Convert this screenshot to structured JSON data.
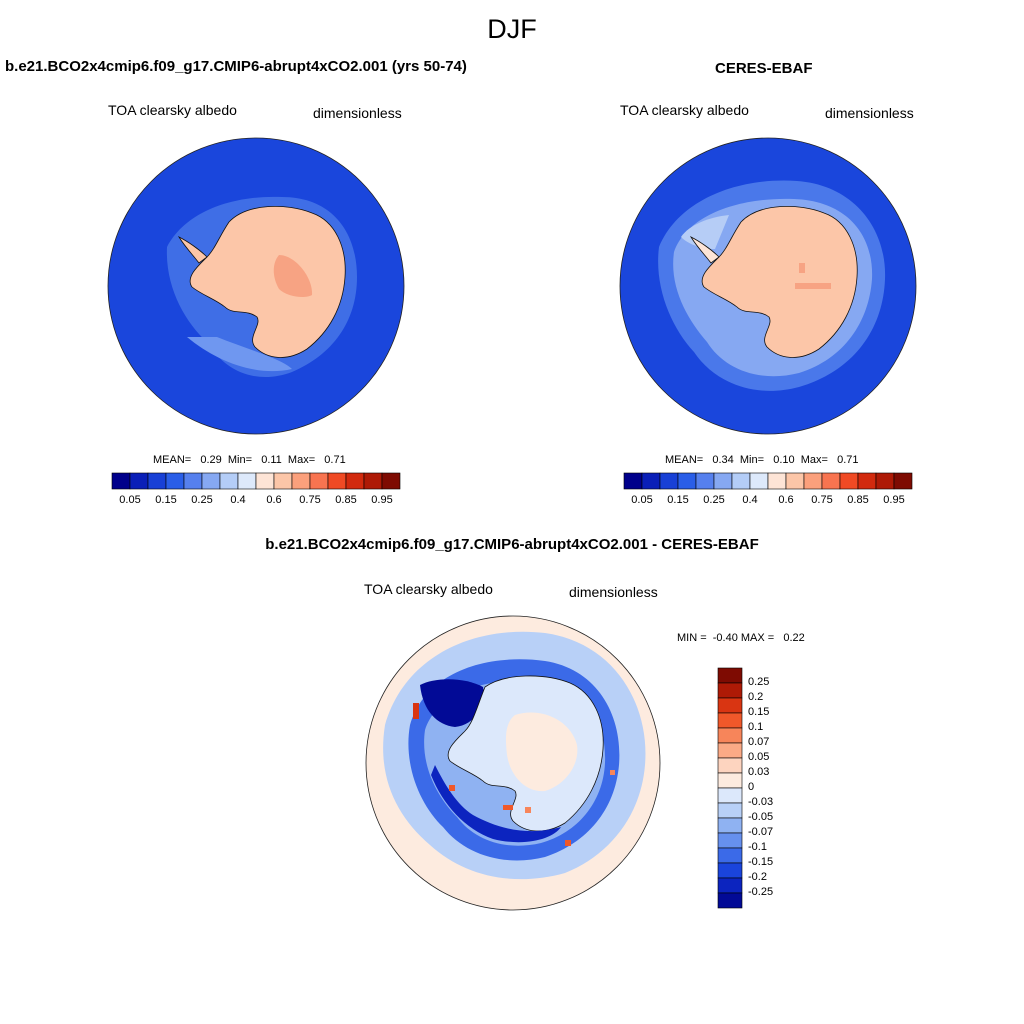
{
  "season": "DJF",
  "panels": [
    {
      "title": "b.e21.BCO2x4cmip6.f09_g17.CMIP6-abrupt4xCO2.001 (yrs 50-74)",
      "variable": "TOA clearsky albedo",
      "units": "dimensionless",
      "stats": "MEAN=   0.29  Min=   0.11  Max=   0.71"
    },
    {
      "title": "CERES-EBAF",
      "variable": "TOA clearsky albedo",
      "units": "dimensionless",
      "stats": "MEAN=   0.34  Min=   0.10  Max=   0.71"
    },
    {
      "title": "b.e21.BCO2x4cmip6.f09_g17.CMIP6-abrupt4xCO2.001 - CERES-EBAF",
      "variable": "TOA clearsky albedo",
      "units": "dimensionless",
      "stats": "MIN =  -0.40 MAX =   0.22"
    }
  ],
  "colorbar_main": {
    "colors": [
      "#00008b",
      "#0a1fb8",
      "#1840d6",
      "#2a5ee8",
      "#5680ee",
      "#86a8f2",
      "#b4cdf7",
      "#dde9fb",
      "#fde4d6",
      "#fcc6a8",
      "#fba07c",
      "#f87450",
      "#f04a24",
      "#d22a0e",
      "#ae1a06",
      "#7e0b02"
    ],
    "labels": [
      "0.05",
      "0.15",
      "0.25",
      "0.4",
      "0.6",
      "0.75",
      "0.85",
      "0.95"
    ]
  },
  "colorbar_diff": {
    "colors": [
      "#7e0b02",
      "#ae1a06",
      "#d93512",
      "#f0582a",
      "#f7855a",
      "#fbaa86",
      "#fdd4bf",
      "#fdebdf",
      "#dce8fb",
      "#b8d0f7",
      "#8fb2f2",
      "#6690ee",
      "#3b6ae8",
      "#1a44dc",
      "#0c24bf",
      "#020a96"
    ],
    "labels": [
      "0.25",
      "0.2",
      "0.15",
      "0.1",
      "0.07",
      "0.05",
      "0.03",
      "0",
      "-0.03",
      "-0.05",
      "-0.07",
      "-0.1",
      "-0.15",
      "-0.2",
      "-0.25"
    ]
  },
  "map_colors": {
    "ocean_model": "#1a46dc",
    "ocean_obs": "#1a46dc",
    "land": "#fcc6a8",
    "land_dark": "#f7a383",
    "ice_edge": "#5b8ef0",
    "ice_edge_light": "#b6cdf6",
    "diff_bg": "#b8d0f7",
    "diff_outer": "#fdebdf",
    "diff_neg": "#1a3fd4",
    "diff_strong": "#020a96",
    "diff_land": "#dce8fb"
  }
}
